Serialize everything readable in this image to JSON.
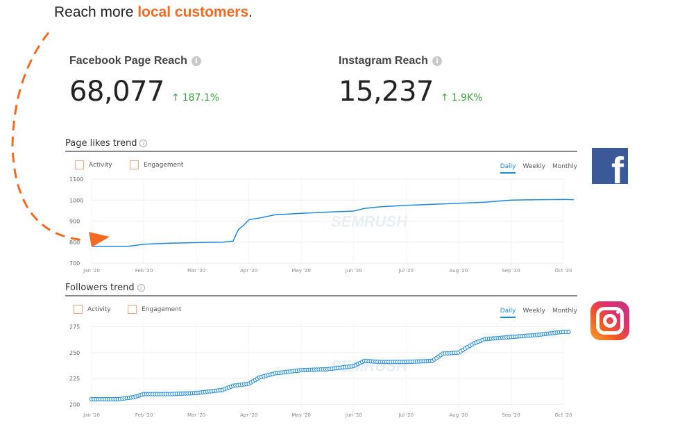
{
  "headline": {
    "prefix": "Reach more ",
    "accent": "local customers",
    "suffix": "."
  },
  "metrics": [
    {
      "label": "Facebook Page Reach",
      "value": "68,077",
      "change": "187.1%",
      "change_icon": "up-arrow-icon"
    },
    {
      "label": "Instagram Reach",
      "value": "15,237",
      "change": "1.9K%",
      "change_icon": "up-arrow-icon"
    }
  ],
  "icons": {
    "info": "info-icon",
    "facebook": "facebook-logo",
    "instagram": "instagram-logo"
  },
  "colors": {
    "accent": "#f26a21",
    "line": "#1e88d8",
    "positive": "#3f9e3f",
    "facebook": "#3b5998"
  },
  "chart_data": [
    {
      "type": "line",
      "title": "Page likes trend",
      "legend": [
        "Activity",
        "Engagement"
      ],
      "periods": [
        "Daily",
        "Weekly",
        "Monthly"
      ],
      "active_period": "Daily",
      "x_ticks": [
        "Jan '20",
        "Feb '20",
        "Mar '20",
        "Apr '20",
        "May '20",
        "Jun '20",
        "Jul '20",
        "Aug '20",
        "Sep '20",
        "Oct '20"
      ],
      "y_ticks": [
        700,
        800,
        900,
        1000,
        1100
      ],
      "ylim": [
        700,
        1100
      ],
      "x": [
        0,
        0.7,
        1.0,
        1.5,
        2.0,
        2.5,
        2.7,
        2.8,
        2.9,
        3.0,
        3.2,
        3.5,
        4.0,
        4.5,
        5.0,
        5.2,
        5.5,
        6.0,
        6.5,
        7.0,
        7.5,
        8.0,
        8.5,
        9.0,
        9.2
      ],
      "values": [
        780,
        780,
        790,
        795,
        798,
        800,
        805,
        860,
        880,
        907,
        915,
        930,
        937,
        943,
        948,
        960,
        968,
        975,
        980,
        985,
        990,
        1000,
        1002,
        1003,
        1002
      ],
      "series_name": "Page likes"
    },
    {
      "type": "line",
      "title": "Followers trend",
      "legend": [
        "Activity",
        "Engagement"
      ],
      "periods": [
        "Daily",
        "Weekly",
        "Monthly"
      ],
      "active_period": "Daily",
      "x_ticks": [
        "Jan '20",
        "Feb '20",
        "Mar '20",
        "Apr '20",
        "May '20",
        "Jun '20",
        "Jul '20",
        "Aug '20",
        "Sep '20",
        "Oct '20"
      ],
      "y_ticks": [
        200,
        225,
        250,
        275
      ],
      "ylim": [
        197,
        278
      ],
      "x": [
        0,
        0.5,
        0.8,
        1.0,
        1.5,
        2.0,
        2.5,
        2.7,
        3.0,
        3.2,
        3.5,
        4.0,
        4.5,
        5.0,
        5.2,
        5.5,
        6.0,
        6.5,
        6.7,
        7.0,
        7.3,
        7.5,
        8.0,
        8.5,
        9.0,
        9.1
      ],
      "values": [
        205,
        205,
        207,
        210,
        210,
        211,
        214,
        218,
        220,
        226,
        230,
        233,
        234,
        237,
        242,
        241,
        241,
        242,
        249,
        250,
        259,
        263,
        265,
        267,
        270,
        270
      ],
      "series_name": "Followers"
    }
  ]
}
